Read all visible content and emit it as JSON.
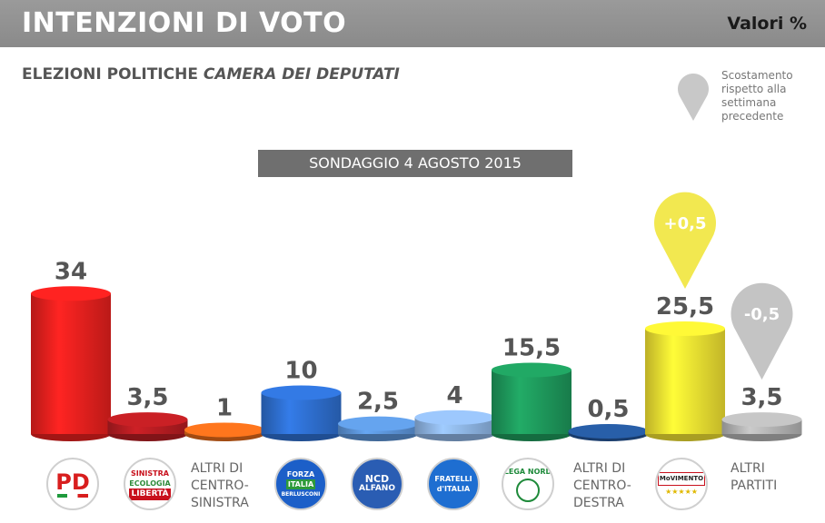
{
  "header": {
    "title": "INTENZIONI DI VOTO",
    "unit": "Valori %"
  },
  "subtitle": {
    "prefix": "ELEZIONI POLITICHE ",
    "emph": "CAMERA DEI DEPUTATI"
  },
  "legend_note": "Scostamento rispetto alla settimana precedente",
  "survey_label": "SONDAGGIO 4 AGOSTO 2015",
  "chart_data": {
    "type": "bar",
    "categories": [
      "PD",
      "Sinistra Ecologia Libertà",
      "ALTRI DI CENTRO-SINISTRA",
      "Forza Italia",
      "NCD Alfano",
      "Fratelli d'Italia",
      "Lega Nord",
      "ALTRI DI CENTRO-DESTRA",
      "MoVimento 5 Stelle",
      "ALTRI PARTITI"
    ],
    "values": [
      34,
      3.5,
      1,
      10,
      2.5,
      4,
      15.5,
      0.5,
      25.5,
      3.5
    ],
    "labels": [
      "34",
      "3,5",
      "1",
      "10",
      "2,5",
      "4",
      "15,5",
      "0,5",
      "25,5",
      "3,5"
    ],
    "colors": [
      "#e8201e",
      "#b81d22",
      "#e86b1a",
      "#2e6fd0",
      "#5c95d9",
      "#8fb6e6",
      "#1e9a5c",
      "#24569a",
      "#f2e232",
      "#b5b5b5"
    ],
    "changes": [
      {
        "index": 8,
        "label": "+0,5",
        "color": "#f2e850"
      },
      {
        "index": 9,
        "label": "-0,5",
        "color": "#c4c4c4"
      }
    ]
  },
  "altri_labels": {
    "centro_sinistra": [
      "ALTRI DI",
      "CENTRO-",
      "SINISTRA"
    ],
    "centro_destra": [
      "ALTRI DI",
      "CENTRO-",
      "DESTRA"
    ],
    "altri_partiti": [
      "ALTRI",
      "PARTITI"
    ]
  },
  "logos": {
    "pd": "PD",
    "sel": [
      "SINISTRA",
      "ECOLOGIA",
      "LIBERTÀ"
    ],
    "fi": [
      "FORZA",
      "ITALIA",
      "BERLUSCONI"
    ],
    "ncd": [
      "NCD",
      "ALFANO"
    ],
    "fdi": [
      "FRATELLI",
      "d'ITALIA"
    ],
    "lega": [
      "LEGA NORD"
    ],
    "m5s": [
      "MoVIMENTO"
    ]
  }
}
